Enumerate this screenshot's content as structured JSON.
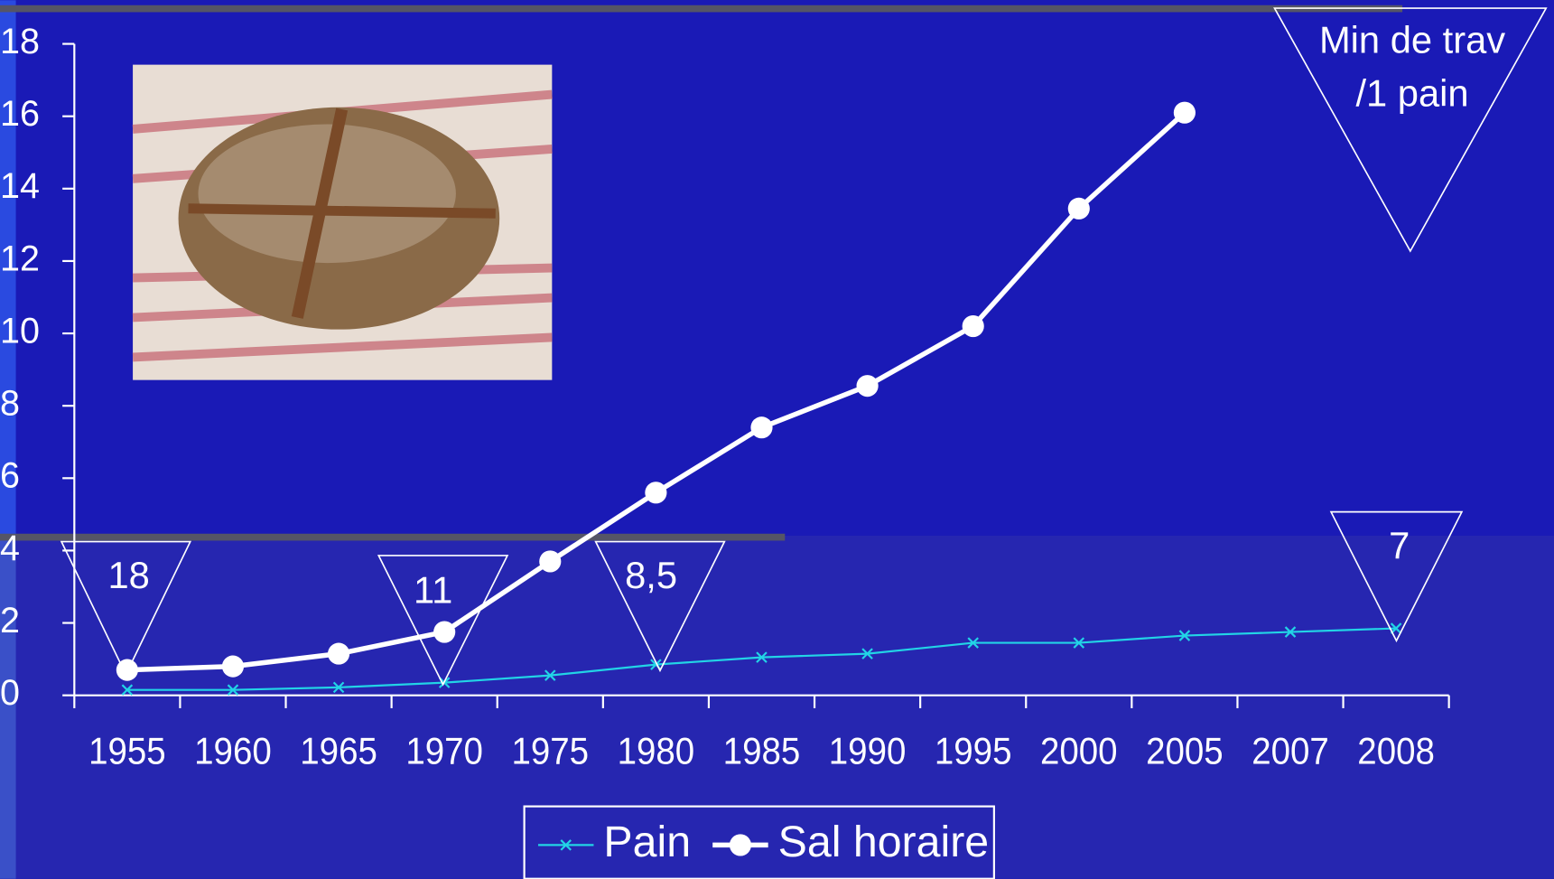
{
  "chart_data": {
    "type": "line",
    "categories": [
      "1955",
      "1960",
      "1965",
      "1970",
      "1975",
      "1980",
      "1985",
      "1990",
      "1995",
      "2000",
      "2005",
      "2007",
      "2008"
    ],
    "series": [
      {
        "name": "Pain",
        "color": "#22d4e6",
        "marker": "x",
        "values": [
          0.15,
          0.15,
          0.22,
          0.35,
          0.55,
          0.85,
          1.05,
          1.15,
          1.45,
          1.45,
          1.65,
          1.75,
          1.85
        ]
      },
      {
        "name": "Sal horaire",
        "color": "#ffffff",
        "marker": "circle",
        "values": [
          0.7,
          0.8,
          1.15,
          1.75,
          3.7,
          5.6,
          7.4,
          8.55,
          10.2,
          13.45,
          16.1,
          null,
          null
        ]
      }
    ],
    "ylim": [
      0,
      18
    ],
    "yticks": [
      0,
      2,
      4,
      6,
      8,
      10,
      12,
      14,
      16,
      18
    ],
    "legend": "bottom",
    "annotations": [
      {
        "lines": [
          "18"
        ]
      },
      {
        "lines": [
          "11"
        ]
      },
      {
        "lines": [
          "8,5"
        ]
      },
      {
        "lines": [
          "7"
        ]
      },
      {
        "lines": [
          "Min de trav",
          "/1 pain"
        ]
      }
    ]
  }
}
